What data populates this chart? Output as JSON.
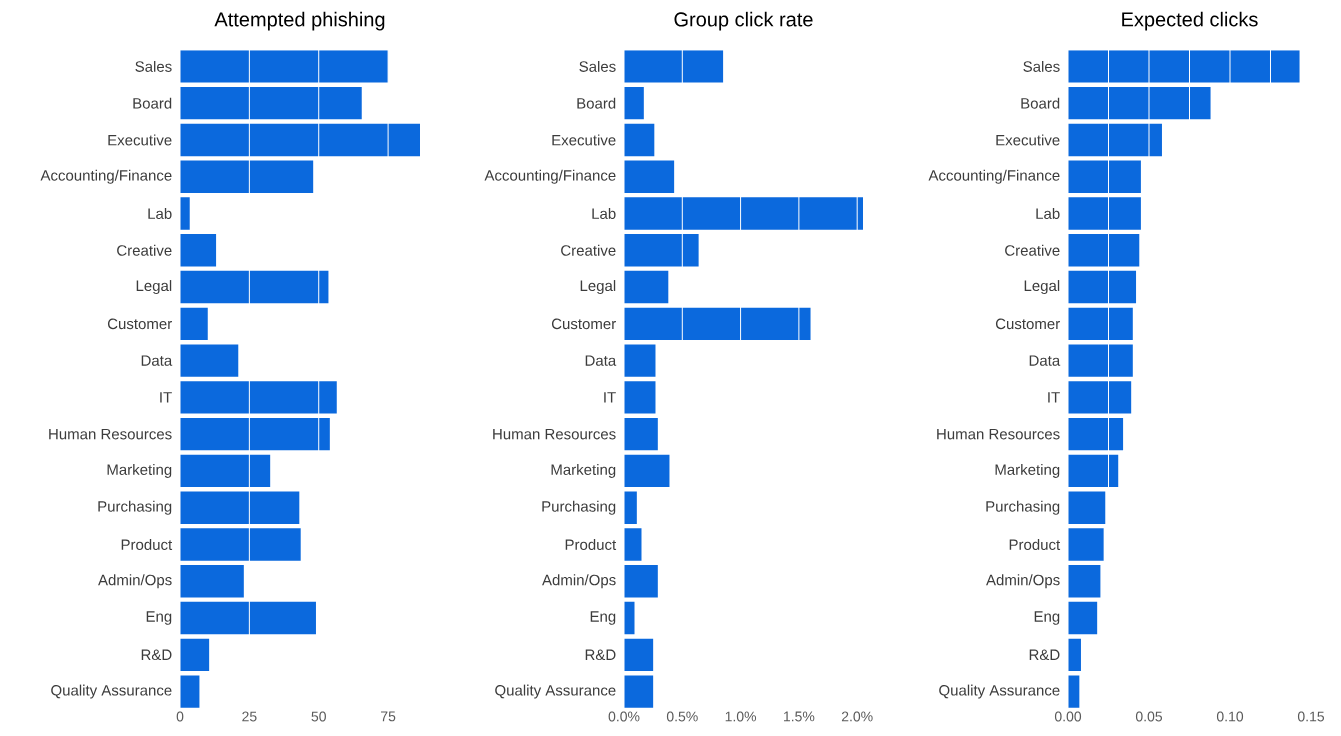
{
  "chart_data": [
    {
      "type": "bar",
      "orientation": "horizontal",
      "title": "Attempted phishing",
      "color": "#0b69dd",
      "grid": "x",
      "categories": [
        "Sales",
        "Board",
        "Executive",
        "Accounting/Finance",
        "Lab",
        "Creative",
        "Legal",
        "Customer",
        "Data",
        "IT",
        "Human Resources",
        "Marketing",
        "Purchasing",
        "Product",
        "Admin/Ops",
        "Eng",
        "R&D",
        "Quality Assurance"
      ],
      "values": [
        75,
        65.5,
        86.5,
        48,
        3.5,
        13,
        53.5,
        10,
        21,
        56.5,
        54,
        32.5,
        43,
        43.5,
        23,
        49,
        10.5,
        7
      ],
      "xlim": [
        0,
        86.5
      ],
      "xticks": [
        0,
        25,
        50,
        75
      ]
    },
    {
      "type": "bar",
      "orientation": "horizontal",
      "title": "Group click rate",
      "color": "#0b69dd",
      "grid": "x",
      "categories": [
        "Sales",
        "Board",
        "Executive",
        "Accounting/Finance",
        "Lab",
        "Creative",
        "Legal",
        "Customer",
        "Data",
        "IT",
        "Human Resources",
        "Marketing",
        "Purchasing",
        "Product",
        "Admin/Ops",
        "Eng",
        "R&D",
        "Quality Assurance"
      ],
      "values": [
        0.85,
        0.17,
        0.26,
        0.43,
        2.05,
        0.64,
        0.38,
        1.6,
        0.27,
        0.27,
        0.29,
        0.39,
        0.11,
        0.15,
        0.29,
        0.09,
        0.25,
        0.25
      ],
      "xlim": [
        0,
        2.05
      ],
      "xticks": [
        {
          "value": 0,
          "label": "0.0%"
        },
        {
          "value": 0.5,
          "label": "0.5%"
        },
        {
          "value": 1,
          "label": "1.0%"
        },
        {
          "value": 1.5,
          "label": "1.5%"
        },
        {
          "value": 2,
          "label": "2.0%"
        }
      ]
    },
    {
      "type": "bar",
      "orientation": "horizontal",
      "title": "Expected clicks",
      "color": "#0b69dd",
      "grid": "x",
      "categories": [
        "Sales",
        "Board",
        "Executive",
        "Accounting/Finance",
        "Lab",
        "Creative",
        "Legal",
        "Customer",
        "Data",
        "IT",
        "Human Resources",
        "Marketing",
        "Purchasing",
        "Product",
        "Admin/Ops",
        "Eng",
        "R&D",
        "Quality Assurance"
      ],
      "values": [
        0.143,
        0.088,
        0.058,
        0.045,
        0.045,
        0.044,
        0.042,
        0.04,
        0.04,
        0.039,
        0.034,
        0.031,
        0.023,
        0.022,
        0.02,
        0.018,
        0.008,
        0.007
      ],
      "xlim": [
        0,
        0.15
      ],
      "xticks": [
        {
          "value": 0,
          "label": "0.00"
        },
        {
          "value": 0.025,
          "label": null
        },
        {
          "value": 0.05,
          "label": "0.05"
        },
        {
          "value": 0.075,
          "label": null
        },
        {
          "value": 0.1,
          "label": "0.10"
        },
        {
          "value": 0.125,
          "label": null
        },
        {
          "value": 0.15,
          "label": "0.15"
        }
      ]
    }
  ]
}
